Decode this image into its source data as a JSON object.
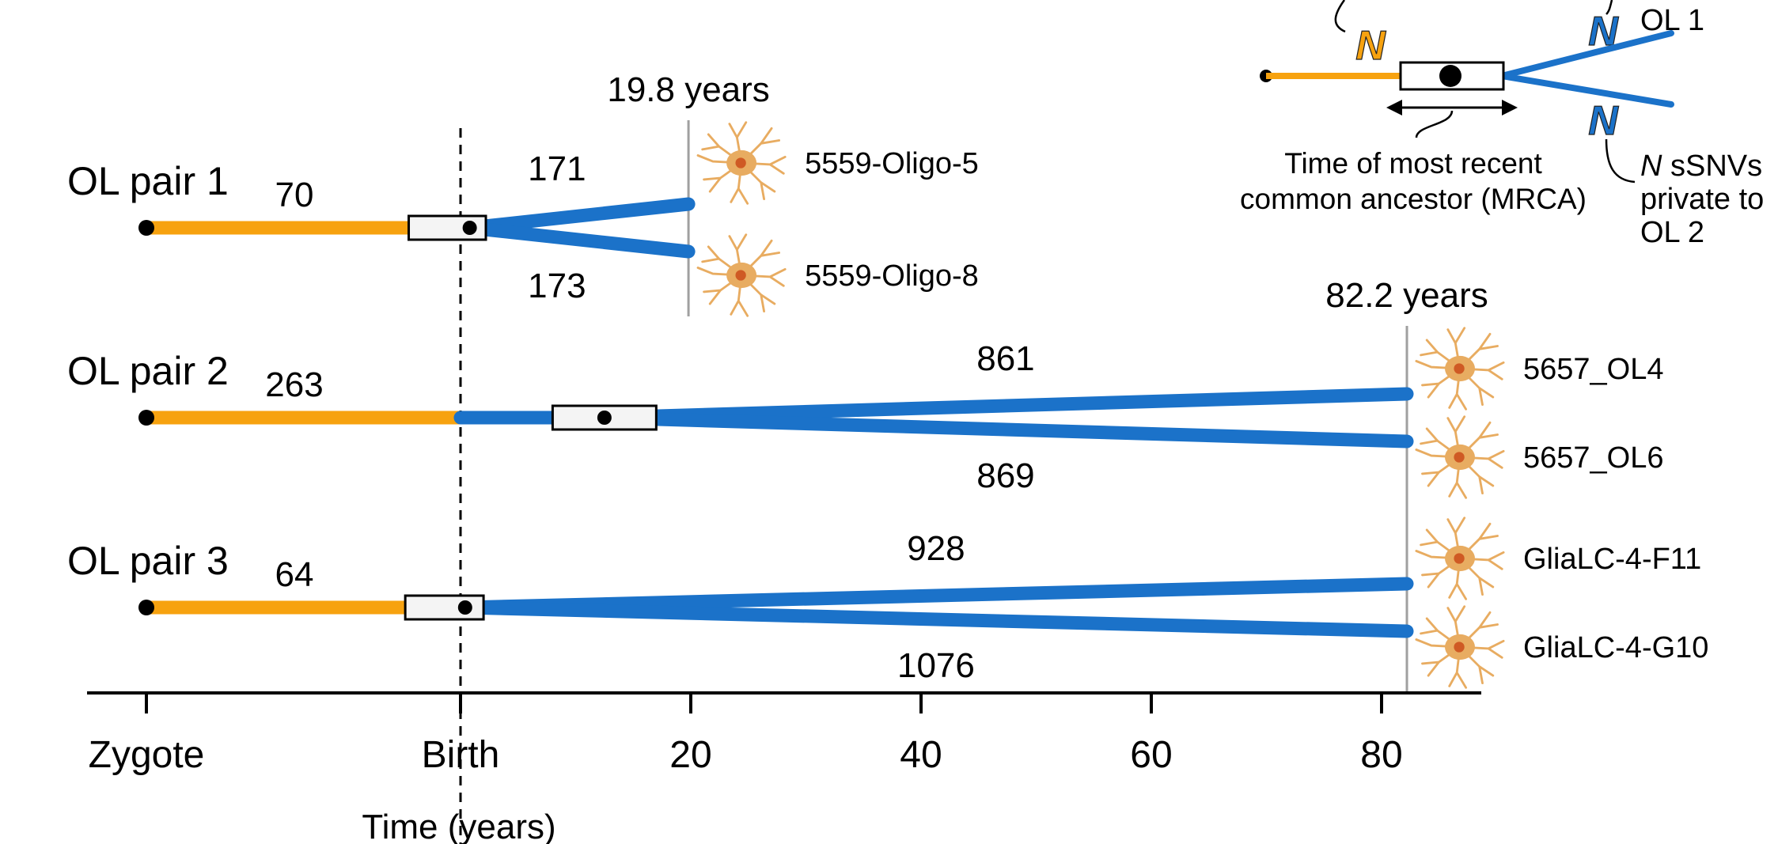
{
  "chart_data": {
    "type": "line",
    "title": "",
    "xlabel": "Time (years)",
    "ylabel": "",
    "x_ticks": [
      {
        "value": "Zygote",
        "label": "Zygote"
      },
      {
        "value": 0,
        "label": "Birth"
      },
      {
        "value": 20,
        "label": "20"
      },
      {
        "value": 40,
        "label": "40"
      },
      {
        "value": 60,
        "label": "60"
      },
      {
        "value": 80,
        "label": "80"
      }
    ],
    "ages": [
      {
        "value": 19.8,
        "label": "19.8 years"
      },
      {
        "value": 82.2,
        "label": "82.2 years"
      }
    ],
    "pairs": [
      {
        "name": "OL pair 1",
        "shared_ssnvs": "70",
        "mrca_years": 0.8,
        "mrca_ci": [
          -4.5,
          2.2
        ],
        "age_years": 19.8,
        "cells": [
          {
            "name": "5559-Oligo-5",
            "private_ssnvs": "171"
          },
          {
            "name": "5559-Oligo-8",
            "private_ssnvs": "173"
          }
        ]
      },
      {
        "name": "OL pair 2",
        "shared_ssnvs": "263",
        "mrca_years": 12.5,
        "mrca_ci": [
          8,
          17
        ],
        "age_years": 82.2,
        "cells": [
          {
            "name": "5657_OL4",
            "private_ssnvs": "861"
          },
          {
            "name": "5657_OL6",
            "private_ssnvs": "869"
          }
        ]
      },
      {
        "name": "OL pair 3",
        "shared_ssnvs": "64",
        "mrca_years": 0.4,
        "mrca_ci": [
          -4.8,
          2.0
        ],
        "age_years": 82.2,
        "cells": [
          {
            "name": "GliaLC-4-F11",
            "private_ssnvs": "928"
          },
          {
            "name": "GliaLC-4-G10",
            "private_ssnvs": "1076"
          }
        ]
      }
    ],
    "colors": {
      "shared": "#f7a20f",
      "private": "#1b72c9",
      "neuron": "#e8ac61",
      "nucleus": "#cf5a24",
      "age_line": "#a0a0a0"
    },
    "legend": {
      "placement": "top-right",
      "n_symbol": "N",
      "top_label": "OL 1",
      "mrca_label_1": "Time of most recent",
      "mrca_label_2": "common ancestor (MRCA)",
      "private_label_1_rest": " sSNVs",
      "private_label_2": "private to",
      "private_label_3": "OL 2"
    }
  }
}
